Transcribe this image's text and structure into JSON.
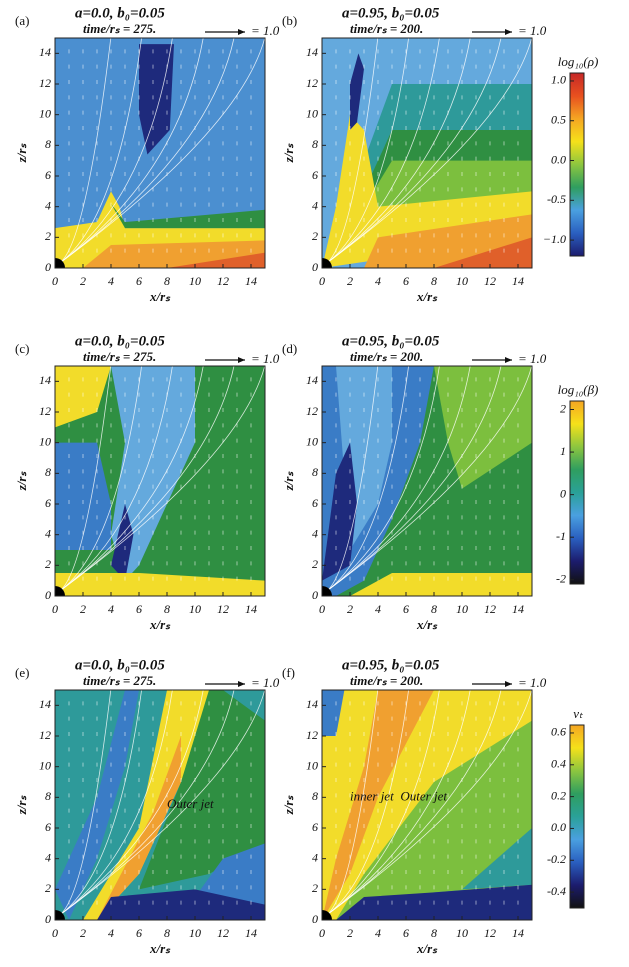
{
  "chart_data": [
    {
      "type": "contour",
      "panel_label": "(a)",
      "title": "a=0.0, b₀=0.05",
      "subtitle": "time/rₛ =  275.",
      "vector_scale": "= 1.0",
      "xlabel": "x/rₛ",
      "ylabel": "z/rₛ",
      "xlim": [
        0,
        15
      ],
      "ylim": [
        0,
        15
      ],
      "xticks": [
        0,
        2,
        4,
        6,
        8,
        10,
        12,
        14
      ],
      "yticks": [
        0,
        2,
        4,
        6,
        8,
        10,
        12,
        14
      ]
    },
    {
      "type": "contour",
      "panel_label": "(b)",
      "title": "a=0.95, b₀=0.05",
      "subtitle": "time/rₛ =  200.",
      "vector_scale": "= 1.0",
      "xlabel": "x/rₛ",
      "ylabel": "z/rₛ",
      "xlim": [
        0,
        15
      ],
      "ylim": [
        0,
        15
      ],
      "xticks": [
        0,
        2,
        4,
        6,
        8,
        10,
        12,
        14
      ],
      "yticks": [
        0,
        2,
        4,
        6,
        8,
        10,
        12,
        14
      ],
      "colorbar": {
        "label": "log₁₀(ρ)",
        "lim": [
          -1.2,
          1.1
        ],
        "ticks": [
          {
            "value": 1,
            "label": "1.0"
          },
          0.5,
          {
            "value": 0,
            "label": "0.0"
          },
          -0.5,
          {
            "value": -1,
            "label": "−1.0"
          }
        ],
        "colors": [
          "#1c1c6e",
          "#2a5fc0",
          "#4aa0e0",
          "#2f9e5f",
          "#8dc63f",
          "#f5e11a",
          "#f5a623",
          "#e8501f",
          "#c62828"
        ]
      }
    },
    {
      "type": "contour",
      "panel_label": "(c)",
      "title": "a=0.0, b₀=0.05",
      "subtitle": "time/rₛ =  275.",
      "vector_scale": "= 1.0",
      "xlabel": "x/rₛ",
      "ylabel": "z/rₛ",
      "xlim": [
        0,
        15
      ],
      "ylim": [
        0,
        15
      ],
      "xticks": [
        0,
        2,
        4,
        6,
        8,
        10,
        12,
        14
      ],
      "yticks": [
        0,
        2,
        4,
        6,
        8,
        10,
        12,
        14
      ]
    },
    {
      "type": "contour",
      "panel_label": "(d)",
      "title": "a=0.95, b₀=0.05",
      "subtitle": "time/rₛ =  200.",
      "vector_scale": "= 1.0",
      "xlabel": "x/rₛ",
      "ylabel": "z/rₛ",
      "xlim": [
        0,
        15
      ],
      "ylim": [
        0,
        15
      ],
      "xticks": [
        0,
        2,
        4,
        6,
        8,
        10,
        12,
        14
      ],
      "yticks": [
        0,
        2,
        4,
        6,
        8,
        10,
        12,
        14
      ],
      "colorbar": {
        "label": "log₁₀(β)",
        "lim": [
          -2.1,
          2.2
        ],
        "ticks": [
          2,
          1,
          0,
          -1,
          -2
        ],
        "colors": [
          "#111111",
          "#1c1c6e",
          "#2a5fc0",
          "#4aa0e0",
          "#2aa198",
          "#2f9e5f",
          "#8dc63f",
          "#f5e11a",
          "#f5a623"
        ]
      }
    },
    {
      "type": "contour",
      "panel_label": "(e)",
      "title": "a=0.0, b₀=0.05",
      "subtitle": "time/rₛ =  275.",
      "vector_scale": "= 1.0",
      "xlabel": "x/rₛ",
      "ylabel": "z/rₛ",
      "xlim": [
        0,
        15
      ],
      "ylim": [
        0,
        15
      ],
      "xticks": [
        0,
        2,
        4,
        6,
        8,
        10,
        12,
        14
      ],
      "yticks": [
        0,
        2,
        4,
        6,
        8,
        10,
        12,
        14
      ],
      "annotations": [
        "Outer jet"
      ]
    },
    {
      "type": "contour",
      "panel_label": "(f)",
      "title": "a=0.95, b₀=0.05",
      "subtitle": "time/rₛ =  200.",
      "vector_scale": "= 1.0",
      "xlabel": "x/rₛ",
      "ylabel": "z/rₛ",
      "xlim": [
        0,
        15
      ],
      "ylim": [
        0,
        15
      ],
      "xticks": [
        0,
        2,
        4,
        6,
        8,
        10,
        12,
        14
      ],
      "yticks": [
        0,
        2,
        4,
        6,
        8,
        10,
        12,
        14
      ],
      "annotations": [
        "inner jet",
        "Outer jet"
      ],
      "colorbar": {
        "label": "vₜ",
        "lim": [
          -0.5,
          0.65
        ],
        "ticks": [
          0.6,
          0.4,
          0.2,
          {
            "value": 0,
            "label": "0.0"
          },
          -0.2,
          -0.4
        ],
        "colors": [
          "#111111",
          "#1c1c6e",
          "#2a5fc0",
          "#4aa0e0",
          "#2aa198",
          "#2f9e5f",
          "#8dc63f",
          "#f5e11a",
          "#f5a623"
        ]
      }
    }
  ]
}
